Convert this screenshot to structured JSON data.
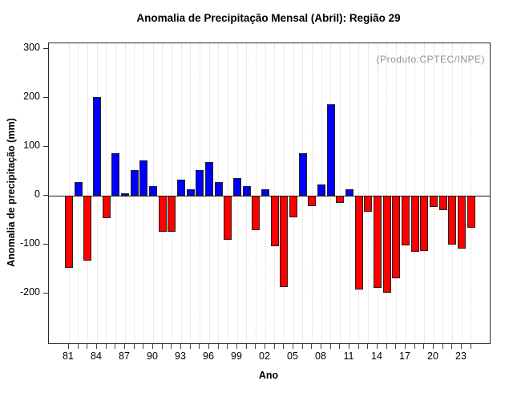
{
  "annotation": "(Produto:CPTEC/INPE)",
  "chart_data": {
    "type": "bar",
    "title": "Anomalia de Precipitação Mensal (Abril): Região 29",
    "xlabel": "Ano",
    "ylabel": "Anomalia de precipitação (mm)",
    "years": [
      1981,
      1982,
      1983,
      1984,
      1985,
      1986,
      1987,
      1988,
      1989,
      1990,
      1991,
      1992,
      1993,
      1994,
      1995,
      1996,
      1997,
      1998,
      1999,
      2000,
      2001,
      2002,
      2003,
      2004,
      2005,
      2006,
      2007,
      2008,
      2009,
      2010,
      2011,
      2012,
      2013,
      2014,
      2015,
      2016,
      2017,
      2018,
      2019,
      2020,
      2021,
      2022,
      2023,
      2024
    ],
    "values": [
      -148,
      27,
      -133,
      201,
      -46,
      86,
      5,
      52,
      71,
      20,
      -75,
      -74,
      32,
      12,
      52,
      69,
      27,
      -90,
      36,
      20,
      -71,
      12,
      -103,
      -188,
      -44,
      86,
      -21,
      23,
      186,
      -15,
      13,
      -192,
      -33,
      -189,
      -199,
      -170,
      -102,
      -115,
      -113,
      -24,
      -30,
      -100,
      -109,
      -66
    ],
    "x_tick_labels": [
      {
        "year": 1981,
        "label": "81"
      },
      {
        "year": 1984,
        "label": "84"
      },
      {
        "year": 1987,
        "label": "87"
      },
      {
        "year": 1990,
        "label": "90"
      },
      {
        "year": 1993,
        "label": "93"
      },
      {
        "year": 1996,
        "label": "96"
      },
      {
        "year": 1999,
        "label": "99"
      },
      {
        "year": 2002,
        "label": "02"
      },
      {
        "year": 2005,
        "label": "05"
      },
      {
        "year": 2008,
        "label": "08"
      },
      {
        "year": 2011,
        "label": "11"
      },
      {
        "year": 2014,
        "label": "14"
      },
      {
        "year": 2017,
        "label": "17"
      },
      {
        "year": 2020,
        "label": "20"
      },
      {
        "year": 2023,
        "label": "23"
      }
    ],
    "y_ticks": [
      300,
      200,
      100,
      0,
      -100,
      -200
    ],
    "ylim": [
      -302,
      311
    ],
    "grid": "vertical-dotted",
    "legend_position": "top-right-inside",
    "colors": {
      "positive": "#0000ff",
      "negative": "#ff0000",
      "bar_border": "#222222",
      "grid": "#d8d8d8",
      "frame": "#2b2b2b",
      "annotation": "#909090"
    }
  }
}
